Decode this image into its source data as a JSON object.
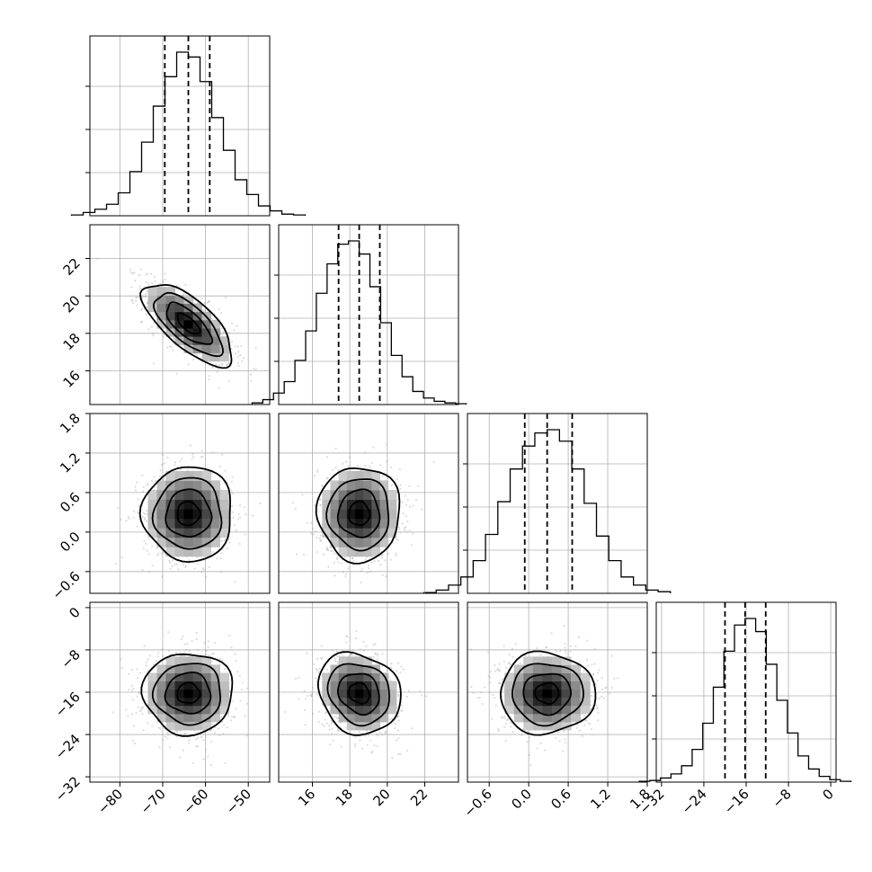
{
  "chart_data": {
    "type": "corner",
    "grid": true,
    "title": "",
    "parameters": [
      {
        "index": 0,
        "range": [
          -87,
          -45
        ],
        "ticks": [
          -80,
          -70,
          -60,
          -50
        ],
        "tick_labels": [
          "−80",
          "−70",
          "−60",
          "−50"
        ],
        "median": -64,
        "quantiles": [
          -69.5,
          -64,
          -59
        ],
        "hist_counts": [
          0.005,
          0.02,
          0.04,
          0.07,
          0.14,
          0.27,
          0.45,
          0.67,
          0.85,
          1.0,
          0.97,
          0.82,
          0.6,
          0.4,
          0.22,
          0.13,
          0.06,
          0.03,
          0.01,
          0.005
        ]
      },
      {
        "index": 1,
        "range": [
          14.2,
          23.8
        ],
        "ticks": [
          16,
          18,
          20,
          22
        ],
        "tick_labels": [
          "16",
          "18",
          "20",
          "22"
        ],
        "median": 18.5,
        "quantiles": [
          17.4,
          18.5,
          19.6
        ],
        "hist_counts": [
          0.01,
          0.03,
          0.07,
          0.14,
          0.27,
          0.45,
          0.68,
          0.86,
          0.98,
          1.0,
          0.92,
          0.72,
          0.5,
          0.3,
          0.17,
          0.08,
          0.04,
          0.02,
          0.01,
          0.005
        ]
      },
      {
        "index": 2,
        "range": [
          -0.93,
          1.8
        ],
        "ticks": [
          -0.6,
          0.0,
          0.6,
          1.2,
          1.8
        ],
        "tick_labels": [
          "−0.6",
          "0.0",
          "0.6",
          "1.2",
          "1.8"
        ],
        "median": 0.28,
        "quantiles": [
          -0.06,
          0.28,
          0.66
        ],
        "hist_counts": [
          0.005,
          0.02,
          0.05,
          0.1,
          0.2,
          0.36,
          0.56,
          0.76,
          0.9,
          0.98,
          1.0,
          0.93,
          0.76,
          0.55,
          0.35,
          0.2,
          0.1,
          0.05,
          0.02,
          0.01
        ]
      },
      {
        "index": 3,
        "range": [
          -33,
          1
        ],
        "ticks": [
          -32,
          -24,
          -16,
          -8,
          0
        ],
        "tick_labels": [
          "−32",
          "−24",
          "−16",
          "−8",
          "0"
        ],
        "median": -16.2,
        "quantiles": [
          -20,
          -16.2,
          -12.3
        ],
        "hist_counts": [
          0.005,
          0.01,
          0.025,
          0.05,
          0.1,
          0.2,
          0.36,
          0.58,
          0.8,
          0.96,
          1.0,
          0.92,
          0.72,
          0.5,
          0.3,
          0.16,
          0.08,
          0.035,
          0.015,
          0.005
        ]
      }
    ],
    "pair_correlations": {
      "1-0": -0.7,
      "2-0": 0.0,
      "2-1": 0.0,
      "3-0": 0.0,
      "3-1": -0.15,
      "3-2": 0.0
    }
  }
}
